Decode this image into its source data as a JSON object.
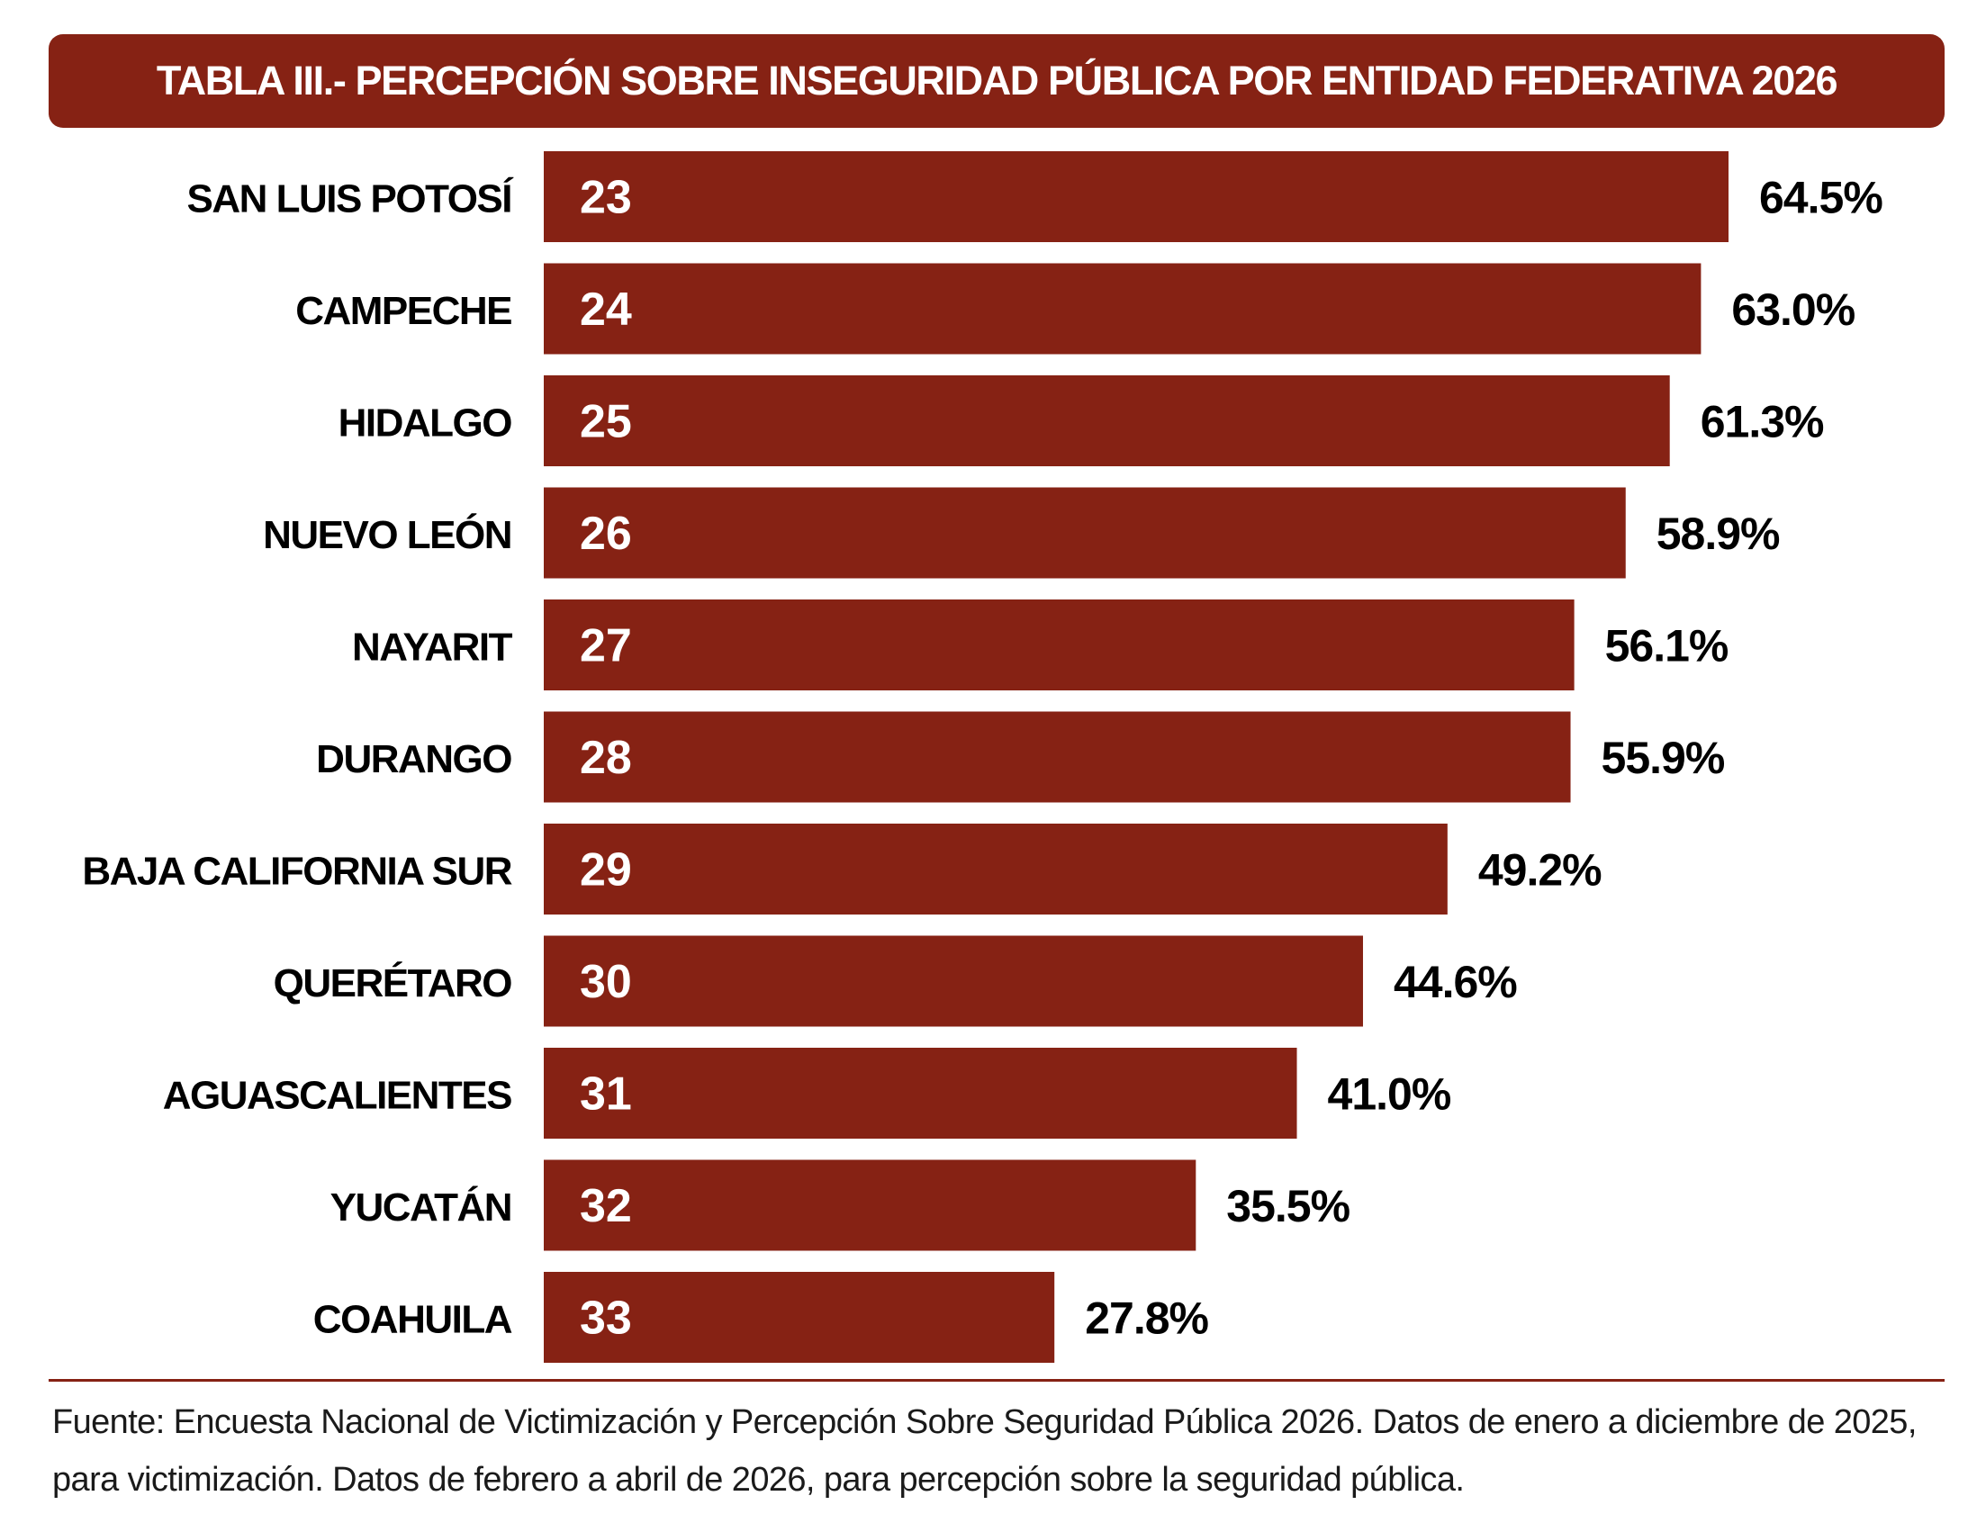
{
  "colors": {
    "bar": "#862214",
    "title_bg": "#862214",
    "rule": "#862214",
    "text": "#000000",
    "rank_text": "#ffffff"
  },
  "title": "TABLA III.- PERCEPCIÓN SOBRE INSEGURIDAD PÚBLICA POR ENTIDAD FEDERATIVA 2026",
  "chart_data": {
    "type": "bar",
    "orientation": "horizontal",
    "value_suffix": "%",
    "xlim": [
      0,
      64.5
    ],
    "categories": [
      "SAN LUIS POTOSÍ",
      "CAMPECHE",
      "HIDALGO",
      "NUEVO LEÓN",
      "NAYARIT",
      "DURANGO",
      "BAJA CALIFORNIA SUR",
      "QUERÉTARO",
      "AGUASCALIENTES",
      "YUCATÁN",
      "COAHUILA"
    ],
    "ranks": [
      "23",
      "24",
      "25",
      "26",
      "27",
      "28",
      "29",
      "30",
      "31",
      "32",
      "33"
    ],
    "values": [
      64.5,
      63.0,
      61.3,
      58.9,
      56.1,
      55.9,
      49.2,
      44.6,
      41.0,
      35.5,
      27.8
    ],
    "value_labels": [
      "64.5%",
      "63.0%",
      "61.3%",
      "58.9%",
      "56.1%",
      "55.9%",
      "49.2%",
      "44.6%",
      "41.0%",
      "35.5%",
      "27.8%"
    ]
  },
  "source": "Fuente: Encuesta Nacional de Victimización y Percepción Sobre Seguridad Pública 2026. Datos de enero a diciembre de 2025, para victimización. Datos de febrero a abril de 2026, para percepción sobre la seguridad pública."
}
